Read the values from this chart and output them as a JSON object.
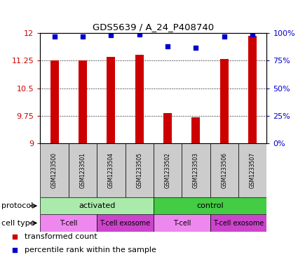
{
  "title": "GDS5639 / A_24_P408740",
  "samples": [
    "GSM1233500",
    "GSM1233501",
    "GSM1233504",
    "GSM1233505",
    "GSM1233502",
    "GSM1233503",
    "GSM1233506",
    "GSM1233507"
  ],
  "bar_values": [
    11.25,
    11.25,
    11.35,
    11.42,
    9.82,
    9.72,
    11.3,
    11.92
  ],
  "percentile_values": [
    97,
    97,
    98,
    99,
    88,
    87,
    97,
    99
  ],
  "bar_color": "#cc0000",
  "dot_color": "#0000cc",
  "ylim_left": [
    9,
    12
  ],
  "ylim_right": [
    0,
    100
  ],
  "yticks_left": [
    9,
    9.75,
    10.5,
    11.25,
    12
  ],
  "yticks_right": [
    0,
    25,
    50,
    75,
    100
  ],
  "ytick_labels_left": [
    "9",
    "9.75",
    "10.5",
    "11.25",
    "12"
  ],
  "ytick_labels_right": [
    "0%",
    "25%",
    "50%",
    "75%",
    "100%"
  ],
  "grid_color": "#000000",
  "protocol_groups": [
    {
      "label": "activated",
      "start": 0,
      "end": 4,
      "color": "#aaeaaa"
    },
    {
      "label": "control",
      "start": 4,
      "end": 8,
      "color": "#44cc44"
    }
  ],
  "cell_type_groups": [
    {
      "label": "T-cell",
      "start": 0,
      "end": 2,
      "color": "#ee88ee"
    },
    {
      "label": "T-cell exosome",
      "start": 2,
      "end": 4,
      "color": "#cc44cc"
    },
    {
      "label": "T-cell",
      "start": 4,
      "end": 6,
      "color": "#ee88ee"
    },
    {
      "label": "T-cell exosome",
      "start": 6,
      "end": 8,
      "color": "#cc44cc"
    }
  ],
  "legend_red_label": "transformed count",
  "legend_blue_label": "percentile rank within the sample",
  "protocol_label": "protocol",
  "celltype_label": "cell type",
  "left_tick_color": "#cc0000",
  "right_tick_color": "#0000cc",
  "bar_base": 9.0,
  "bar_width": 0.3
}
